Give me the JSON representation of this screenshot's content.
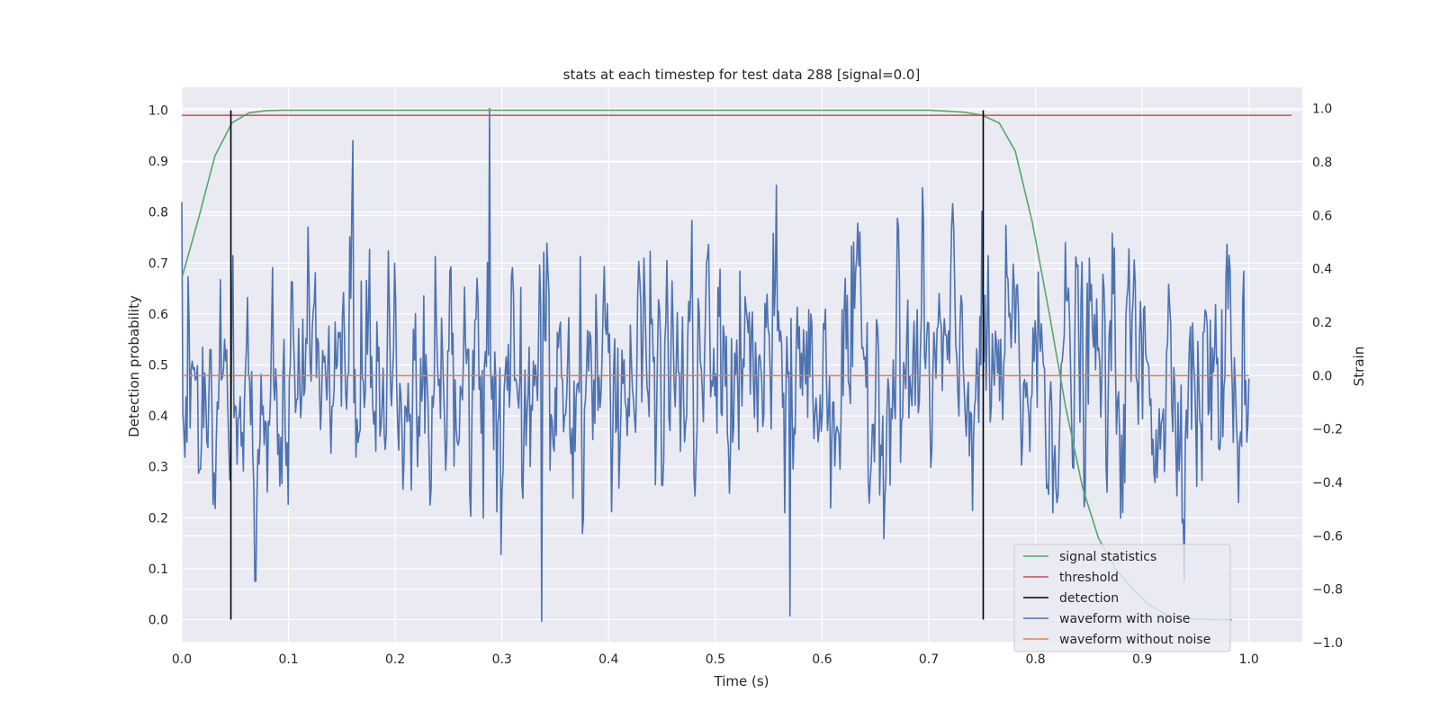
{
  "chart_data": {
    "type": "line",
    "title": "stats at each timestep for test data 288 [signal=0.0]",
    "xlabel": "Time (s)",
    "ylabel_left": "Detection probability",
    "ylabel_right": "Strain",
    "xlim": [
      0.0,
      1.05
    ],
    "ylim_left": [
      -0.045,
      1.045
    ],
    "ylim_right": [
      -1.0,
      1.08
    ],
    "x_ticks": [
      0.0,
      0.1,
      0.2,
      0.3,
      0.4,
      0.5,
      0.6,
      0.7,
      0.8,
      0.9,
      1.0
    ],
    "y_left_ticks": [
      0.0,
      0.1,
      0.2,
      0.3,
      0.4,
      0.5,
      0.6,
      0.7,
      0.8,
      0.9,
      1.0
    ],
    "y_right_ticks": [
      -1.0,
      -0.8,
      -0.6,
      -0.4,
      -0.2,
      0.0,
      0.2,
      0.4,
      0.6,
      0.8,
      1.0
    ],
    "grid": true,
    "legend_position": "lower-right",
    "colors": {
      "background": "#eaeaf2",
      "grid": "#ffffff",
      "signal_statistics": "#55a868",
      "threshold": "#c44e52",
      "detection": "#000000",
      "waveform_with_noise": "#4c72b0",
      "waveform_without_noise": "#dd8452"
    },
    "series": [
      {
        "name": "signal statistics",
        "axis": "left",
        "x": [
          0.0,
          0.016,
          0.031,
          0.047,
          0.063,
          0.078,
          0.094,
          0.109,
          0.2,
          0.3,
          0.4,
          0.5,
          0.6,
          0.7,
          0.719,
          0.734,
          0.75,
          0.766,
          0.781,
          0.797,
          0.813,
          0.828,
          0.844,
          0.859,
          0.875,
          0.891,
          0.906,
          0.922,
          0.938,
          0.953,
          0.969,
          0.984
        ],
        "values": [
          0.67,
          0.79,
          0.91,
          0.975,
          0.995,
          0.999,
          1.0,
          1.0,
          1.0,
          1.0,
          1.0,
          1.0,
          1.0,
          1.0,
          0.998,
          0.996,
          0.99,
          0.975,
          0.92,
          0.78,
          0.6,
          0.42,
          0.26,
          0.16,
          0.1,
          0.06,
          0.03,
          0.01,
          0.003,
          0.001,
          0.0,
          0.0
        ]
      },
      {
        "name": "threshold",
        "axis": "left",
        "x": [
          0.0,
          1.04
        ],
        "values": [
          0.99,
          0.99
        ]
      },
      {
        "name": "detection",
        "axis": "left",
        "x": [
          0.046,
          0.751
        ],
        "values_range": [
          0.0,
          1.0
        ]
      },
      {
        "name": "waveform with noise",
        "axis": "right",
        "x_range": [
          0.0,
          1.0
        ],
        "n_points": 1024,
        "min": -0.92,
        "max": 1.0,
        "peaks": [
          {
            "x": 0.288,
            "value": 1.0
          },
          {
            "x": 0.16,
            "value": 0.88
          },
          {
            "x": 0.0,
            "value": 0.65
          },
          {
            "x": 0.337,
            "value": -0.92
          },
          {
            "x": 0.57,
            "value": -0.9
          },
          {
            "x": 0.299,
            "value": -0.67
          }
        ]
      },
      {
        "name": "waveform without noise",
        "axis": "right",
        "x": [
          0.0,
          1.0
        ],
        "values": [
          0.0,
          0.0
        ]
      }
    ]
  }
}
